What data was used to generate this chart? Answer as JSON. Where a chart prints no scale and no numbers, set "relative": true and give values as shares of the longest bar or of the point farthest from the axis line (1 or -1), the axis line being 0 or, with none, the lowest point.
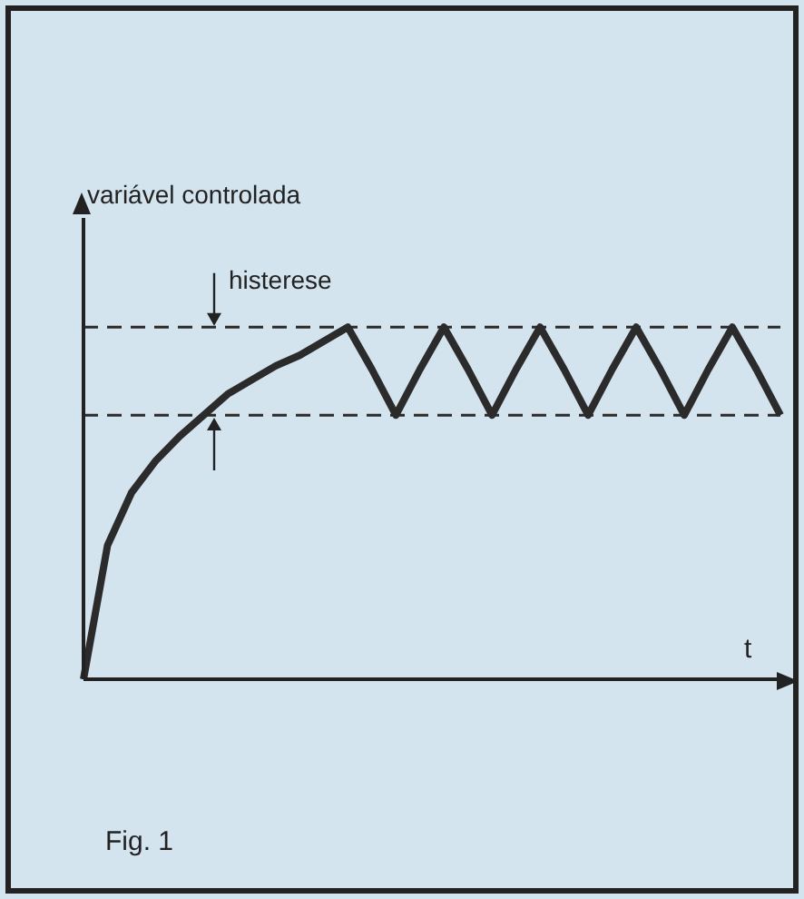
{
  "chart_data": {
    "type": "line",
    "relative": true,
    "xlabel": "t",
    "ylabel": "variável controlada",
    "categories": [
      null,
      null,
      null,
      null,
      null,
      null,
      null,
      null,
      null,
      null,
      null,
      null,
      null,
      null,
      null,
      null,
      null,
      null,
      null,
      null,
      null,
      null,
      null,
      null,
      null,
      null,
      null,
      null,
      null,
      null
    ],
    "series": [
      {
        "color": "#2b2b2b",
        "values": [
          0,
          0.38,
          0.53,
          0.62,
          0.69,
          0.75,
          0.81,
          0.85,
          0.89,
          0.92,
          0.96,
          1,
          0.88,
          0.75,
          0.88,
          1,
          0.88,
          0.75,
          0.88,
          1,
          0.88,
          0.75,
          0.88,
          1,
          0.88,
          0.75,
          0.88,
          1,
          0.88,
          0.75
        ]
      }
    ],
    "ref_lines": [
      {
        "axis": "y",
        "value": 1,
        "line_style": "dashed",
        "color": "#2b2b2b"
      },
      {
        "axis": "y",
        "value": 0.75,
        "line_style": "dashed",
        "color": "#2b2b2b"
      }
    ],
    "annotations": [
      "histerese",
      "Fig. 1"
    ],
    "marker": "none",
    "line_style": "solid"
  }
}
